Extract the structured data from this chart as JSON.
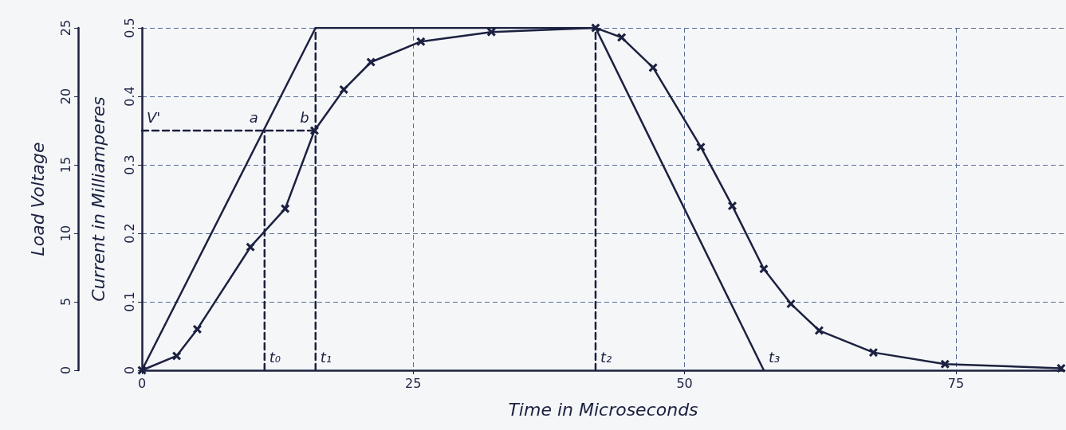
{
  "chart_data": {
    "type": "line",
    "xlabel": "Time in Microseconds",
    "ylabel": "Current in Milliamperes",
    "y2label": "Load Voltage",
    "xlim": [
      0,
      85
    ],
    "xticks": [
      0,
      25,
      50,
      75
    ],
    "ylim": [
      0,
      0.5
    ],
    "yticks": [
      0,
      0.1,
      0.2,
      0.3,
      0.4,
      0.5
    ],
    "y2lim": [
      0,
      25
    ],
    "y2ticks": [
      0,
      5,
      10,
      15,
      20,
      25
    ],
    "grid": true,
    "series": [
      {
        "color": "#1c2140",
        "line_style": "solid",
        "x": [
          0,
          16,
          41.8,
          57.3
        ],
        "values": [
          0,
          0.5,
          0.5,
          0
        ]
      },
      {
        "color": "#1c2140",
        "marker": "cross",
        "line_style": "solid",
        "x": [
          0,
          3.2,
          5.1,
          10,
          13.2,
          15.9,
          18.6,
          21.1,
          25.7,
          32.2,
          41.8,
          44.2,
          47.1,
          51.5,
          54.4,
          57.3,
          59.8,
          62.4,
          67.4,
          74,
          84.7
        ],
        "values": [
          0,
          0.021,
          0.06,
          0.18,
          0.236,
          0.35,
          0.41,
          0.45,
          0.48,
          0.494,
          0.5,
          0.486,
          0.442,
          0.326,
          0.24,
          0.148,
          0.097,
          0.058,
          0.026,
          0.009,
          0.003
        ]
      },
      {
        "color": "#1c2140",
        "marker": "none",
        "line_style": "dashed",
        "x": [
          0,
          16
        ],
        "values": [
          0.35,
          0.35
        ]
      },
      {
        "color": "#1c2140",
        "marker": "none",
        "line_style": "dashed",
        "x": [
          11.3,
          11.3
        ],
        "values": [
          0,
          0.35
        ]
      },
      {
        "color": "#1c2140",
        "marker": "none",
        "line_style": "dashed",
        "x": [
          16,
          16
        ],
        "values": [
          0,
          0.5
        ]
      },
      {
        "color": "#1c2140",
        "marker": "none",
        "line_style": "dashed",
        "x": [
          41.8,
          41.8
        ],
        "values": [
          0,
          0.5
        ]
      }
    ],
    "annotations": [
      {
        "text": "V'",
        "x": 0,
        "y": 0.35
      },
      {
        "text": "a",
        "x": 11.3,
        "y": 0.35
      },
      {
        "text": "b",
        "x": 16,
        "y": 0.35
      },
      {
        "text": "t₀",
        "x": 11.3,
        "y": 0
      },
      {
        "text": "t₁",
        "x": 16,
        "y": 0
      },
      {
        "text": "t₂",
        "x": 41.8,
        "y": 0
      },
      {
        "text": "t₃",
        "x": 57.3,
        "y": 0
      }
    ]
  }
}
